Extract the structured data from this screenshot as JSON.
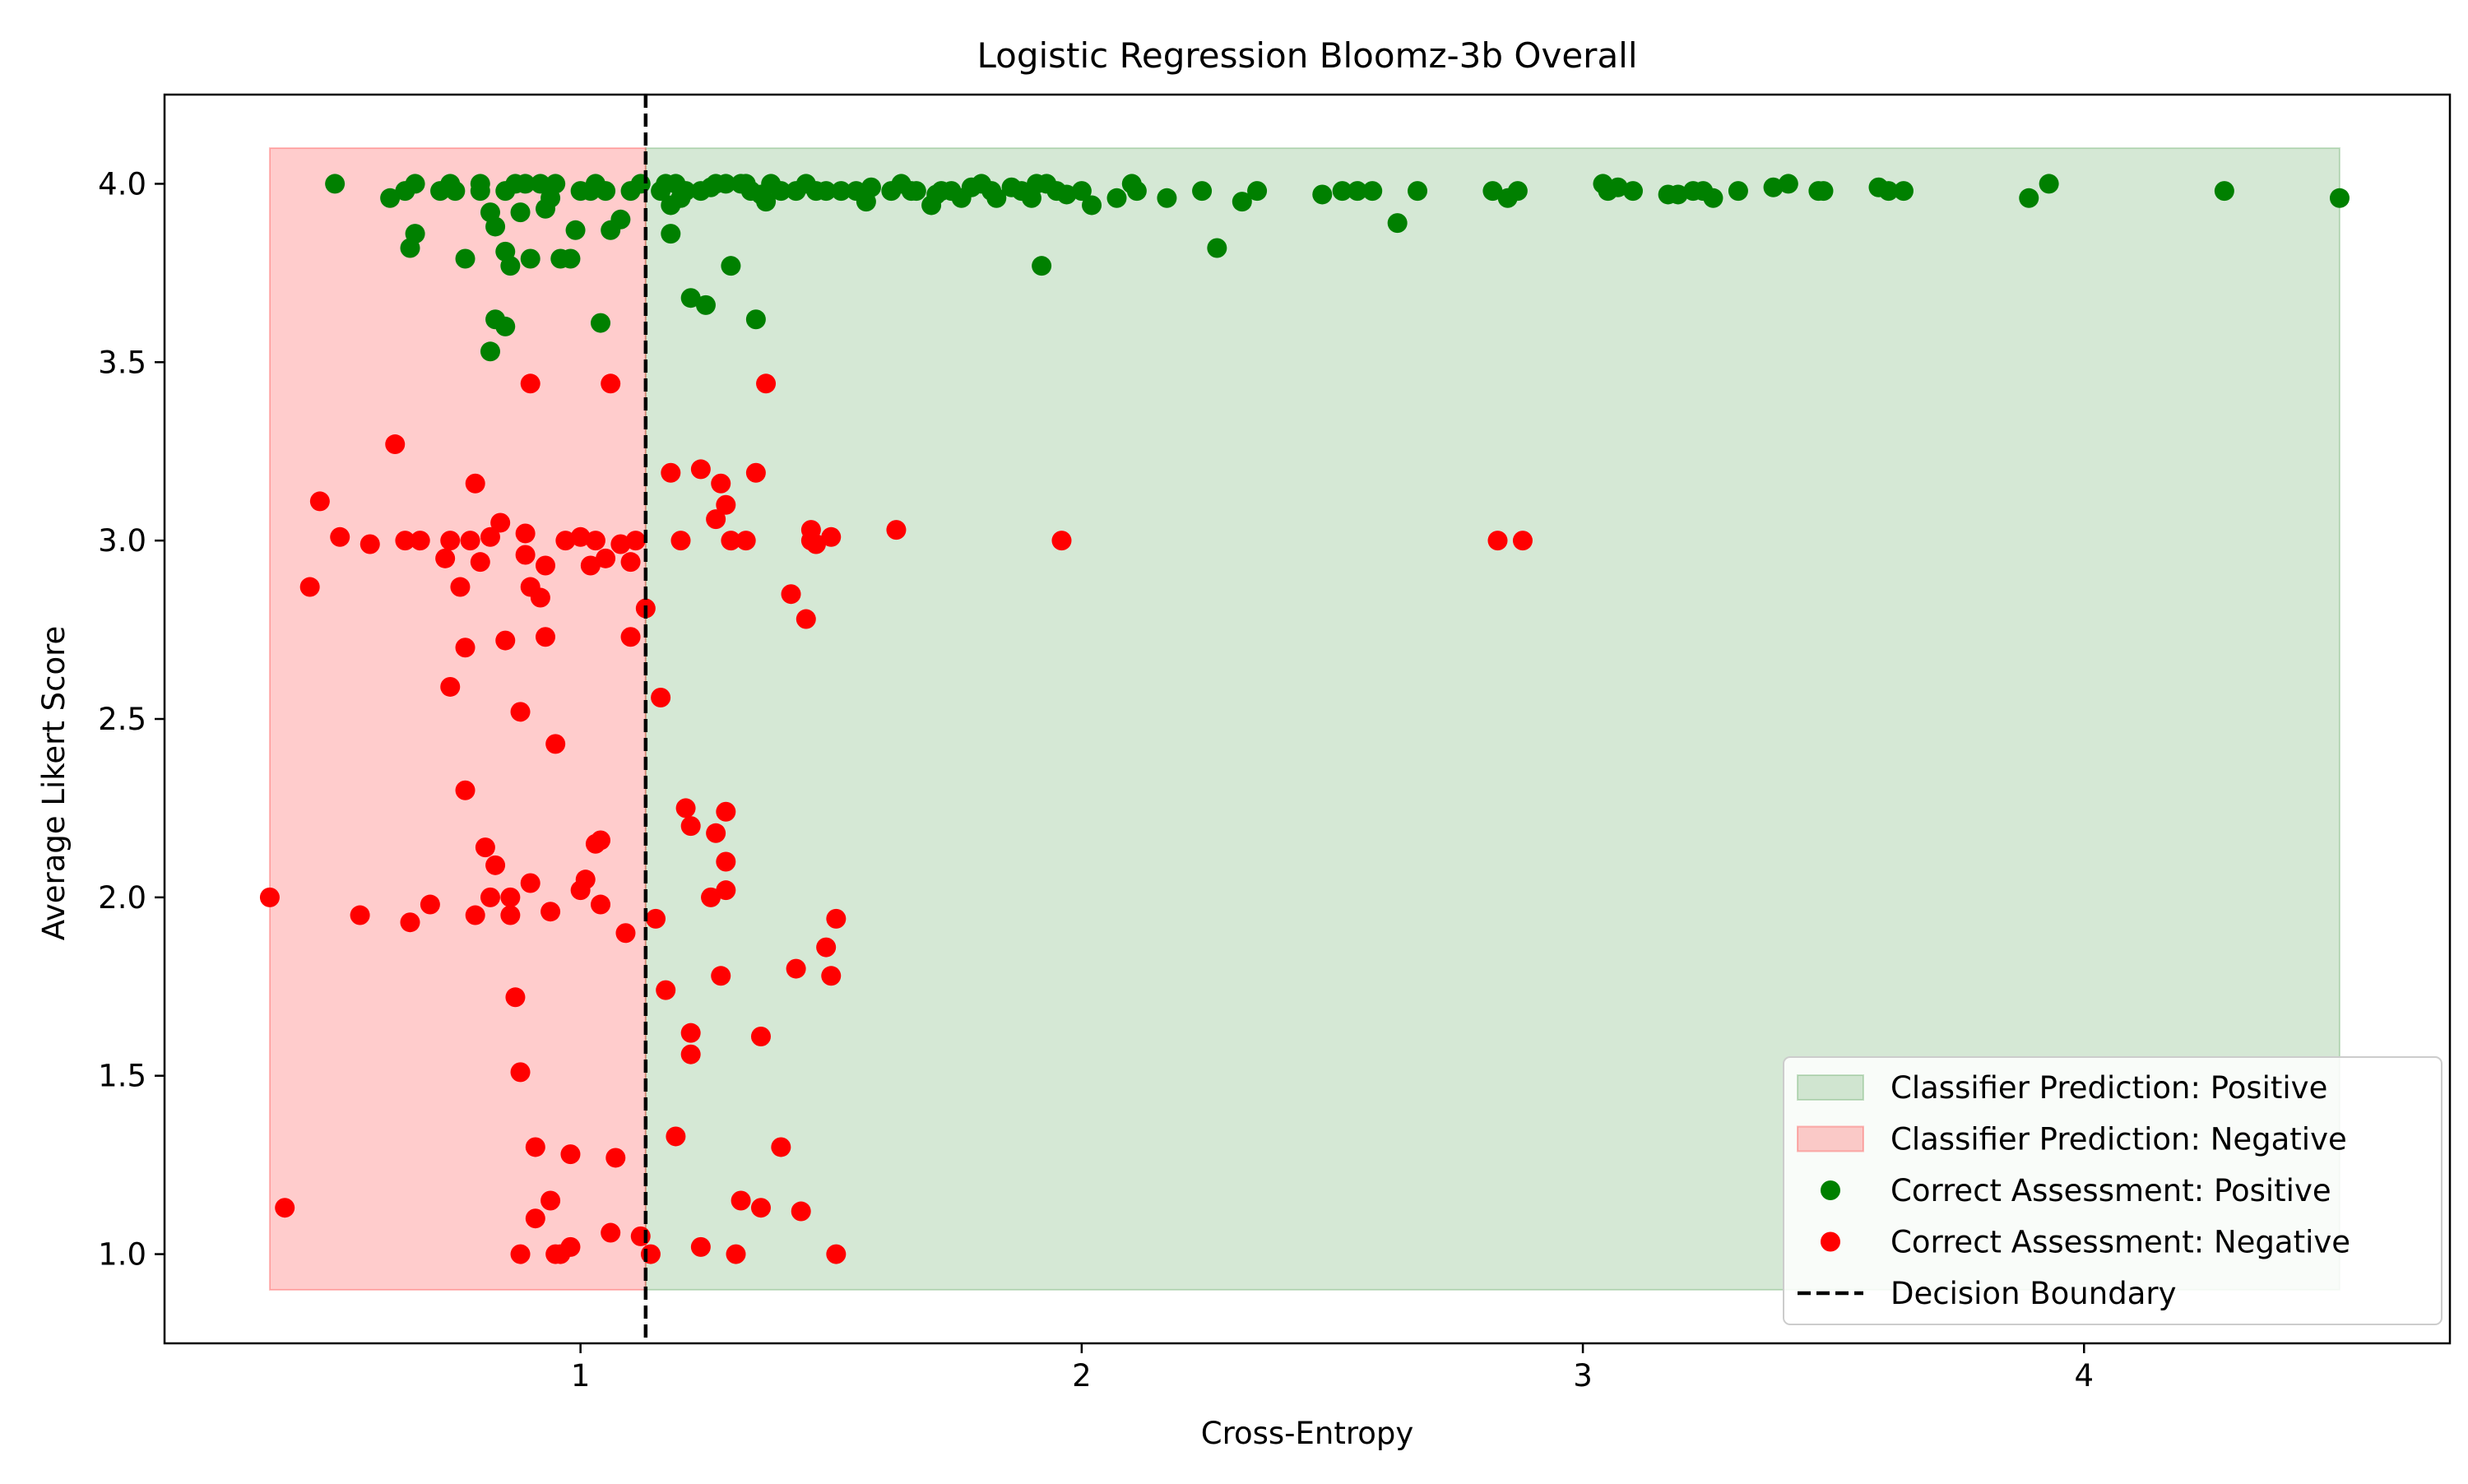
{
  "chart_data": {
    "type": "scatter",
    "title": "Logistic Regression Bloomz-3b Overall",
    "xlabel": "Cross-Entropy",
    "ylabel": "Average Likert Score",
    "xlim": [
      0.17,
      4.73
    ],
    "ylim": [
      0.75,
      4.25
    ],
    "grid": false,
    "legend_position": "bottom-right",
    "x_ticks": [
      1,
      2,
      3,
      4
    ],
    "y_ticks": [
      1.0,
      1.5,
      2.0,
      2.5,
      3.0,
      3.5,
      4.0
    ],
    "x_tick_labels": [
      "1",
      "2",
      "3",
      "4"
    ],
    "y_tick_labels": [
      "1.0",
      "1.5",
      "2.0",
      "2.5",
      "3.0",
      "3.5",
      "4.0"
    ],
    "decision_boundary": 1.13,
    "regions": [
      {
        "name": "Classifier Prediction: Positive",
        "x": [
          1.13,
          4.51
        ],
        "y": [
          0.9,
          4.1
        ],
        "color": "#2e8b2e"
      },
      {
        "name": "Classifier Prediction: Negative",
        "x": [
          0.38,
          1.13
        ],
        "y": [
          0.9,
          4.1
        ],
        "color": "#ff0000"
      }
    ],
    "series": [
      {
        "name": "Correct Assessment: Positive",
        "color": "#008000",
        "points": [
          [
            0.51,
            4.0
          ],
          [
            0.62,
            3.96
          ],
          [
            0.65,
            3.98
          ],
          [
            0.67,
            4.0
          ],
          [
            0.66,
            3.82
          ],
          [
            0.67,
            3.86
          ],
          [
            0.72,
            3.98
          ],
          [
            0.74,
            4.0
          ],
          [
            0.75,
            3.98
          ],
          [
            0.77,
            3.79
          ],
          [
            0.8,
            3.98
          ],
          [
            0.8,
            4.0
          ],
          [
            0.82,
            3.92
          ],
          [
            0.83,
            3.88
          ],
          [
            0.83,
            3.62
          ],
          [
            0.82,
            3.53
          ],
          [
            0.85,
            3.81
          ],
          [
            0.86,
            3.77
          ],
          [
            0.85,
            3.6
          ],
          [
            0.85,
            3.98
          ],
          [
            0.87,
            4.0
          ],
          [
            0.88,
            3.92
          ],
          [
            0.89,
            4.0
          ],
          [
            0.9,
            3.79
          ],
          [
            0.92,
            4.0
          ],
          [
            0.93,
            3.93
          ],
          [
            0.94,
            3.96
          ],
          [
            0.95,
            4.0
          ],
          [
            0.96,
            3.79
          ],
          [
            0.98,
            3.79
          ],
          [
            0.99,
            3.87
          ],
          [
            1.0,
            3.98
          ],
          [
            1.02,
            3.98
          ],
          [
            1.03,
            4.0
          ],
          [
            1.04,
            3.61
          ],
          [
            1.05,
            3.98
          ],
          [
            1.06,
            3.87
          ],
          [
            1.08,
            3.9
          ],
          [
            1.1,
            3.98
          ],
          [
            1.12,
            4.0
          ],
          [
            1.16,
            3.98
          ],
          [
            1.17,
            4.0
          ],
          [
            1.18,
            3.94
          ],
          [
            1.18,
            3.86
          ],
          [
            1.19,
            4.0
          ],
          [
            1.2,
            3.96
          ],
          [
            1.21,
            3.98
          ],
          [
            1.22,
            3.68
          ],
          [
            1.24,
            3.98
          ],
          [
            1.25,
            3.66
          ],
          [
            1.26,
            3.99
          ],
          [
            1.27,
            4.0
          ],
          [
            1.29,
            4.0
          ],
          [
            1.3,
            3.77
          ],
          [
            1.32,
            4.0
          ],
          [
            1.33,
            4.0
          ],
          [
            1.34,
            3.98
          ],
          [
            1.35,
            3.62
          ],
          [
            1.36,
            3.97
          ],
          [
            1.37,
            3.95
          ],
          [
            1.38,
            4.0
          ],
          [
            1.4,
            3.98
          ],
          [
            1.43,
            3.98
          ],
          [
            1.45,
            4.0
          ],
          [
            1.47,
            3.98
          ],
          [
            1.49,
            3.98
          ],
          [
            1.52,
            3.98
          ],
          [
            1.55,
            3.98
          ],
          [
            1.57,
            3.95
          ],
          [
            1.58,
            3.99
          ],
          [
            1.62,
            3.98
          ],
          [
            1.64,
            4.0
          ],
          [
            1.66,
            3.98
          ],
          [
            1.67,
            3.98
          ],
          [
            1.7,
            3.94
          ],
          [
            1.71,
            3.97
          ],
          [
            1.72,
            3.98
          ],
          [
            1.74,
            3.98
          ],
          [
            1.76,
            3.96
          ],
          [
            1.78,
            3.99
          ],
          [
            1.8,
            4.0
          ],
          [
            1.82,
            3.98
          ],
          [
            1.83,
            3.96
          ],
          [
            1.86,
            3.99
          ],
          [
            1.88,
            3.98
          ],
          [
            1.9,
            3.96
          ],
          [
            1.91,
            4.0
          ],
          [
            1.92,
            3.77
          ],
          [
            1.93,
            4.0
          ],
          [
            1.95,
            3.98
          ],
          [
            1.97,
            3.97
          ],
          [
            2.0,
            3.98
          ],
          [
            2.02,
            3.94
          ],
          [
            2.07,
            3.96
          ],
          [
            2.1,
            4.0
          ],
          [
            2.11,
            3.98
          ],
          [
            2.17,
            3.96
          ],
          [
            2.24,
            3.98
          ],
          [
            2.27,
            3.82
          ],
          [
            2.32,
            3.95
          ],
          [
            2.35,
            3.98
          ],
          [
            2.48,
            3.97
          ],
          [
            2.52,
            3.98
          ],
          [
            2.55,
            3.98
          ],
          [
            2.58,
            3.98
          ],
          [
            2.63,
            3.89
          ],
          [
            2.67,
            3.98
          ],
          [
            2.82,
            3.98
          ],
          [
            2.85,
            3.96
          ],
          [
            2.87,
            3.98
          ],
          [
            3.04,
            4.0
          ],
          [
            3.05,
            3.98
          ],
          [
            3.07,
            3.99
          ],
          [
            3.1,
            3.98
          ],
          [
            3.17,
            3.97
          ],
          [
            3.19,
            3.97
          ],
          [
            3.22,
            3.98
          ],
          [
            3.24,
            3.98
          ],
          [
            3.26,
            3.96
          ],
          [
            3.31,
            3.98
          ],
          [
            3.38,
            3.99
          ],
          [
            3.41,
            4.0
          ],
          [
            3.47,
            3.98
          ],
          [
            3.48,
            3.98
          ],
          [
            3.59,
            3.99
          ],
          [
            3.61,
            3.98
          ],
          [
            3.64,
            3.98
          ],
          [
            3.89,
            3.96
          ],
          [
            3.93,
            4.0
          ],
          [
            4.28,
            3.98
          ],
          [
            4.51,
            3.96
          ]
        ]
      },
      {
        "name": "Correct Assessment: Negative",
        "color": "#ff0000",
        "points": [
          [
            0.38,
            2.0
          ],
          [
            0.41,
            1.13
          ],
          [
            0.46,
            2.87
          ],
          [
            0.48,
            3.11
          ],
          [
            0.52,
            3.01
          ],
          [
            0.56,
            1.95
          ],
          [
            0.58,
            2.99
          ],
          [
            0.63,
            3.27
          ],
          [
            0.65,
            3.0
          ],
          [
            0.66,
            1.93
          ],
          [
            0.68,
            3.0
          ],
          [
            0.7,
            1.98
          ],
          [
            0.73,
            2.95
          ],
          [
            0.74,
            2.59
          ],
          [
            0.74,
            3.0
          ],
          [
            0.76,
            2.87
          ],
          [
            0.77,
            2.7
          ],
          [
            0.77,
            2.3
          ],
          [
            0.78,
            3.0
          ],
          [
            0.79,
            3.16
          ],
          [
            0.79,
            1.95
          ],
          [
            0.8,
            2.94
          ],
          [
            0.81,
            2.14
          ],
          [
            0.82,
            3.01
          ],
          [
            0.82,
            2.0
          ],
          [
            0.83,
            2.09
          ],
          [
            0.84,
            3.05
          ],
          [
            0.85,
            2.72
          ],
          [
            0.86,
            2.0
          ],
          [
            0.86,
            1.95
          ],
          [
            0.87,
            1.72
          ],
          [
            0.88,
            2.52
          ],
          [
            0.88,
            1.51
          ],
          [
            0.88,
            1.0
          ],
          [
            0.89,
            3.02
          ],
          [
            0.89,
            2.96
          ],
          [
            0.9,
            2.87
          ],
          [
            0.9,
            3.44
          ],
          [
            0.9,
            2.04
          ],
          [
            0.91,
            1.3
          ],
          [
            0.91,
            1.1
          ],
          [
            0.92,
            2.84
          ],
          [
            0.93,
            2.93
          ],
          [
            0.93,
            2.73
          ],
          [
            0.94,
            1.96
          ],
          [
            0.94,
            1.15
          ],
          [
            0.95,
            2.43
          ],
          [
            0.95,
            1.0
          ],
          [
            0.96,
            1.0
          ],
          [
            0.97,
            3.0
          ],
          [
            0.98,
            1.28
          ],
          [
            0.98,
            1.02
          ],
          [
            1.0,
            2.02
          ],
          [
            1.0,
            3.01
          ],
          [
            1.01,
            2.05
          ],
          [
            1.02,
            2.93
          ],
          [
            1.03,
            2.15
          ],
          [
            1.03,
            3.0
          ],
          [
            1.04,
            2.16
          ],
          [
            1.04,
            1.98
          ],
          [
            1.05,
            2.95
          ],
          [
            1.06,
            3.44
          ],
          [
            1.06,
            1.06
          ],
          [
            1.07,
            1.27
          ],
          [
            1.08,
            2.99
          ],
          [
            1.09,
            1.9
          ],
          [
            1.1,
            2.94
          ],
          [
            1.1,
            2.73
          ],
          [
            1.11,
            3.0
          ],
          [
            1.12,
            1.05
          ],
          [
            1.13,
            2.81
          ],
          [
            1.14,
            1.0
          ],
          [
            1.15,
            1.94
          ],
          [
            1.16,
            2.56
          ],
          [
            1.17,
            1.74
          ],
          [
            1.18,
            3.19
          ],
          [
            1.19,
            1.33
          ],
          [
            1.2,
            3.0
          ],
          [
            1.21,
            2.25
          ],
          [
            1.22,
            2.2
          ],
          [
            1.22,
            1.62
          ],
          [
            1.22,
            1.56
          ],
          [
            1.24,
            3.2
          ],
          [
            1.24,
            1.02
          ],
          [
            1.26,
            2.0
          ],
          [
            1.27,
            3.06
          ],
          [
            1.27,
            2.18
          ],
          [
            1.28,
            3.16
          ],
          [
            1.28,
            1.78
          ],
          [
            1.29,
            3.1
          ],
          [
            1.29,
            2.24
          ],
          [
            1.29,
            2.1
          ],
          [
            1.29,
            2.02
          ],
          [
            1.3,
            3.0
          ],
          [
            1.31,
            1.0
          ],
          [
            1.32,
            1.15
          ],
          [
            1.33,
            3.0
          ],
          [
            1.35,
            3.19
          ],
          [
            1.36,
            1.61
          ],
          [
            1.36,
            1.13
          ],
          [
            1.37,
            3.44
          ],
          [
            1.4,
            1.3
          ],
          [
            1.42,
            2.85
          ],
          [
            1.43,
            1.8
          ],
          [
            1.44,
            1.12
          ],
          [
            1.45,
            2.78
          ],
          [
            1.46,
            3.03
          ],
          [
            1.46,
            3.0
          ],
          [
            1.47,
            2.99
          ],
          [
            1.49,
            1.86
          ],
          [
            1.5,
            3.01
          ],
          [
            1.5,
            1.78
          ],
          [
            1.51,
            1.94
          ],
          [
            1.51,
            1.0
          ],
          [
            1.63,
            3.03
          ],
          [
            1.96,
            3.0
          ],
          [
            2.83,
            3.0
          ],
          [
            2.88,
            3.0
          ]
        ]
      }
    ],
    "legend": [
      {
        "label": "Classifier Prediction: Positive",
        "kind": "patch",
        "color": "#2e8b2e"
      },
      {
        "label": "Classifier Prediction: Negative",
        "kind": "patch",
        "color": "#ff0000"
      },
      {
        "label": "Correct Assessment: Positive",
        "kind": "marker",
        "color": "#008000"
      },
      {
        "label": "Correct Assessment: Negative",
        "kind": "marker",
        "color": "#ff0000"
      },
      {
        "label": "Decision Boundary",
        "kind": "dashed-line",
        "color": "#000000"
      }
    ]
  }
}
